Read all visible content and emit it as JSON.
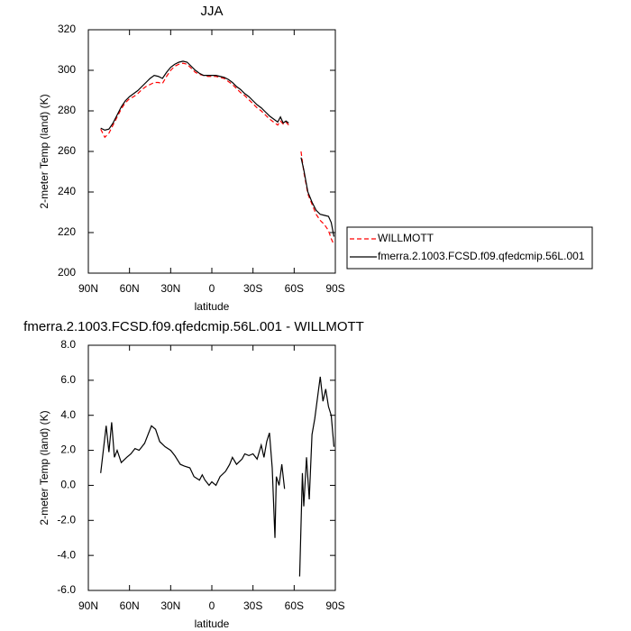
{
  "chart_data": [
    {
      "type": "line",
      "title": "JJA",
      "xlabel": "latitude",
      "ylabel": "2-meter Temp (land) (K)",
      "xlim": [
        90,
        -90
      ],
      "ylim": [
        200,
        320
      ],
      "xticks": [
        {
          "value": 90,
          "label": "90N"
        },
        {
          "value": 60,
          "label": "60N"
        },
        {
          "value": 30,
          "label": "30N"
        },
        0,
        {
          "value": -30,
          "label": "30S"
        },
        {
          "value": -60,
          "label": "60S"
        },
        {
          "value": -90,
          "label": "90S"
        }
      ],
      "yticks": [
        200,
        220,
        240,
        260,
        280,
        300,
        320
      ],
      "legend": "outside-right",
      "x": [
        81,
        78,
        75,
        72,
        69,
        66,
        63,
        60,
        57,
        54,
        51,
        48,
        45,
        42,
        39,
        36,
        33,
        30,
        27,
        24,
        21,
        18,
        15,
        12,
        9,
        6,
        3,
        0,
        -3,
        -6,
        -9,
        -12,
        -15,
        -18,
        -21,
        -24,
        -27,
        -30,
        -33,
        -36,
        -39,
        -42,
        -45,
        -48,
        -50,
        -52,
        -54,
        -56,
        -60,
        -65,
        -67,
        -70,
        -73,
        -76,
        -79,
        -82,
        -85,
        -87,
        -89
      ],
      "series": [
        {
          "name": "WILLMOTT",
          "color": "#ff0000",
          "dash": true,
          "values": [
            271,
            267,
            269,
            273,
            277,
            281,
            284,
            286,
            287,
            288.5,
            290.5,
            292,
            293,
            294,
            294,
            293.5,
            297,
            300,
            302,
            303,
            303.5,
            303,
            301,
            299,
            298,
            297.5,
            297,
            297,
            297,
            296.5,
            296,
            294.5,
            293,
            291,
            289,
            287.5,
            285.5,
            283.5,
            281.5,
            280,
            278,
            276,
            274.5,
            273,
            275,
            273.5,
            274.5,
            273,
            null,
            260,
            250,
            239,
            234,
            229,
            226,
            224,
            221,
            217,
            214
          ]
        },
        {
          "name": "fmerra.2.1003.FCSD.f09.qfedcmip.56L.001",
          "color": "#000000",
          "dash": false,
          "values": [
            271.5,
            270.5,
            271,
            274,
            278,
            282,
            285,
            287,
            288.5,
            290,
            292,
            294,
            296,
            297.5,
            297,
            296,
            299,
            301.5,
            303,
            304,
            304.5,
            304,
            302,
            300,
            298.5,
            297.5,
            297.5,
            297.5,
            297.5,
            297,
            296.5,
            295.5,
            294,
            292,
            290.5,
            288.5,
            287,
            285,
            283,
            281.5,
            279.5,
            277.5,
            276,
            274.5,
            277,
            274,
            275,
            274,
            null,
            257,
            251,
            240,
            235,
            231,
            229,
            228.5,
            228,
            225,
            218
          ]
        }
      ]
    },
    {
      "type": "line",
      "title": "fmerra.2.1003.FCSD.f09.qfedcmip.56L.001 - WILLMOTT",
      "xlabel": "latitude",
      "ylabel": "2-meter Temp (land) (K)",
      "xlim": [
        90,
        -90
      ],
      "ylim": [
        -6,
        8
      ],
      "xticks": [
        {
          "value": 90,
          "label": "90N"
        },
        {
          "value": 60,
          "label": "60N"
        },
        {
          "value": 30,
          "label": "30N"
        },
        0,
        {
          "value": -30,
          "label": "30S"
        },
        {
          "value": -60,
          "label": "60S"
        },
        {
          "value": -90,
          "label": "90S"
        }
      ],
      "yticks": [
        {
          "value": -6,
          "label": "-6.0"
        },
        {
          "value": -4,
          "label": "-4.0"
        },
        {
          "value": -2,
          "label": "-2.0"
        },
        {
          "value": 0,
          "label": "0.0"
        },
        {
          "value": 2,
          "label": "2.0"
        },
        {
          "value": 4,
          "label": "4.0"
        },
        {
          "value": 6,
          "label": "6.0"
        },
        {
          "value": 8,
          "label": "8.0"
        }
      ],
      "x": [
        81,
        77,
        75,
        73,
        71,
        69,
        66,
        62,
        59,
        56,
        53,
        49,
        46,
        44,
        41,
        38,
        34,
        30,
        27,
        23,
        20,
        16,
        13,
        9,
        7,
        5,
        2,
        0,
        -3,
        -6,
        -10,
        -13,
        -15,
        -18,
        -22,
        -24,
        -27,
        -30,
        -33,
        -36,
        -38,
        -40,
        -42,
        -44,
        -46,
        -47,
        -49,
        -51,
        -53,
        -58,
        -64,
        -66,
        -67,
        -69,
        -71,
        -73,
        -75,
        -77,
        -79,
        -81,
        -83,
        -85,
        -87,
        -89
      ],
      "series": [
        {
          "color": "#000000",
          "dash": false,
          "values": [
            0.7,
            3.4,
            1.9,
            3.6,
            1.6,
            2.0,
            1.3,
            1.6,
            1.8,
            2.1,
            2.0,
            2.4,
            3.0,
            3.4,
            3.2,
            2.5,
            2.2,
            2.0,
            1.7,
            1.2,
            1.1,
            1.0,
            0.5,
            0.3,
            0.6,
            0.3,
            0.0,
            0.2,
            0.0,
            0.5,
            0.8,
            1.2,
            1.6,
            1.2,
            1.5,
            1.8,
            1.7,
            1.8,
            1.5,
            2.3,
            1.6,
            2.5,
            3.0,
            1.0,
            -3.0,
            0.5,
            0.0,
            1.2,
            -0.2,
            null,
            -5.2,
            0.7,
            -1.2,
            1.6,
            -0.8,
            2.9,
            3.8,
            5.0,
            6.2,
            4.8,
            5.5,
            4.5,
            4.0,
            2.2
          ]
        }
      ]
    }
  ]
}
